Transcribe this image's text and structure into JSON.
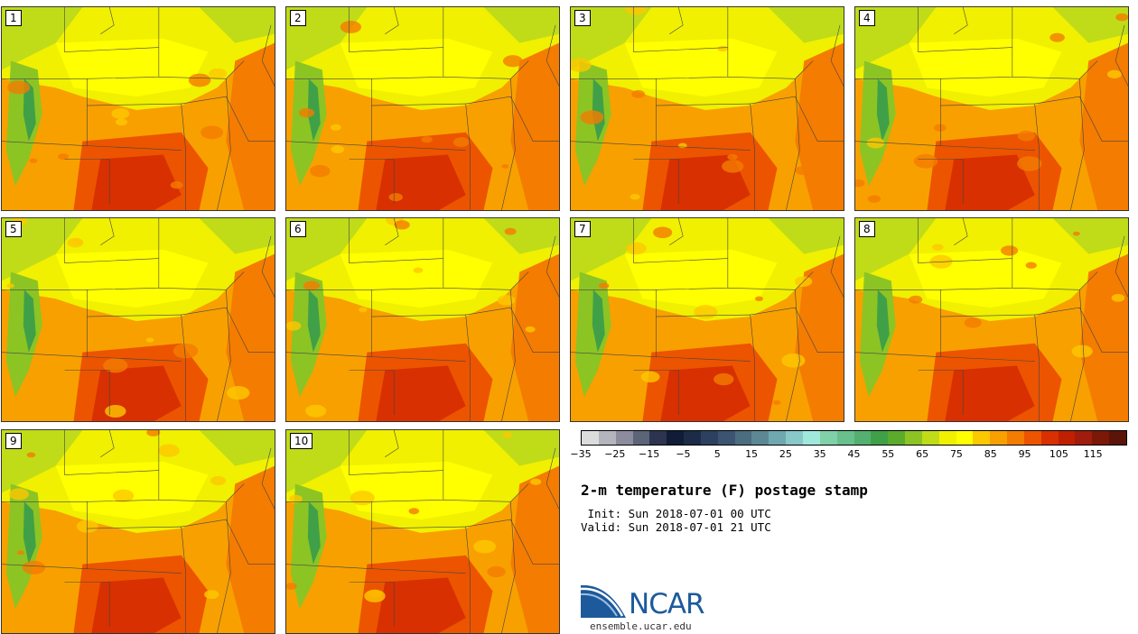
{
  "panels": [
    {
      "label": "1"
    },
    {
      "label": "2"
    },
    {
      "label": "3"
    },
    {
      "label": "4"
    },
    {
      "label": "5"
    },
    {
      "label": "6"
    },
    {
      "label": "7"
    },
    {
      "label": "8"
    },
    {
      "label": "9"
    },
    {
      "label": "10"
    }
  ],
  "colorbar": {
    "colors": [
      "#dcdcdc",
      "#b4b4bc",
      "#8c8c9c",
      "#5c6478",
      "#2c3450",
      "#101c38",
      "#1c2c48",
      "#2c4060",
      "#3c5470",
      "#4c6c80",
      "#5c8894",
      "#70a8b0",
      "#88c8c8",
      "#a0e8dc",
      "#80d0a8",
      "#68c08c",
      "#54b070",
      "#40a048",
      "#5cac2c",
      "#8cc424",
      "#c0dc18",
      "#f0f000",
      "#ffff00",
      "#fcc800",
      "#f8a000",
      "#f47c00",
      "#ec5400",
      "#d83000",
      "#c02000",
      "#a01c0c",
      "#7c1808",
      "#5c1408"
    ],
    "tick_labels": [
      "−35",
      "−25",
      "−15",
      "−5",
      "5",
      "15",
      "25",
      "35",
      "45",
      "55",
      "65",
      "75",
      "85",
      "95",
      "105",
      "115"
    ]
  },
  "title": "2-m temperature (F) postage stamp",
  "init": " Init: Sun 2018-07-01 00 UTC",
  "valid": "Valid: Sun 2018-07-01 21 UTC",
  "logo": {
    "text": "NCAR",
    "url": "ensemble.ucar.edu"
  }
}
